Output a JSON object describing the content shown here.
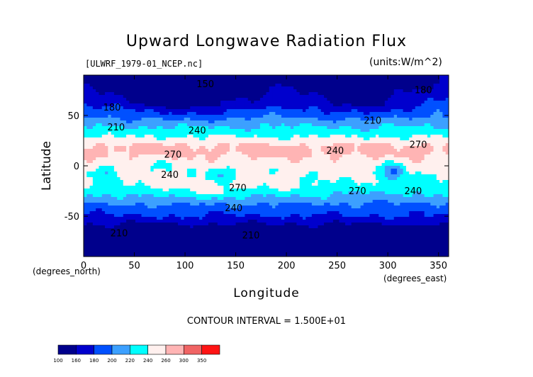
{
  "chart_data": {
    "type": "heatmap",
    "title": "Upward Longwave Radiation Flux",
    "file_label": "[ULWRF_1979-01_NCEP.nc]",
    "units_label": "(units:W/m^2)",
    "xlabel": "Longitude",
    "ylabel": "Latitude",
    "x_units": "(degrees_north)",
    "x_units2": "(degrees_east)",
    "xlim": [
      0,
      360
    ],
    "ylim": [
      -90,
      90
    ],
    "xticks": [
      0,
      50,
      100,
      150,
      200,
      250,
      300,
      350
    ],
    "yticks": [
      -50,
      0,
      50
    ],
    "contour_interval": "CONTOUR INTERVAL = 1.500E+01",
    "contour_labels": [
      {
        "text": "150",
        "lon": 120,
        "lat": 78
      },
      {
        "text": "180",
        "lon": 28,
        "lat": 55
      },
      {
        "text": "180",
        "lon": 335,
        "lat": 72
      },
      {
        "text": "210",
        "lon": 32,
        "lat": 35
      },
      {
        "text": "210",
        "lon": 285,
        "lat": 42
      },
      {
        "text": "240",
        "lon": 112,
        "lat": 32
      },
      {
        "text": "240",
        "lon": 248,
        "lat": 12
      },
      {
        "text": "240",
        "lon": 85,
        "lat": -12
      },
      {
        "text": "240",
        "lon": 148,
        "lat": -45
      },
      {
        "text": "240",
        "lon": 325,
        "lat": -28
      },
      {
        "text": "270",
        "lon": 88,
        "lat": 8
      },
      {
        "text": "270",
        "lon": 330,
        "lat": 18
      },
      {
        "text": "270",
        "lon": 152,
        "lat": -25
      },
      {
        "text": "270",
        "lon": 270,
        "lat": -28
      },
      {
        "text": "210",
        "lon": 35,
        "lat": -70
      },
      {
        "text": "210",
        "lon": 165,
        "lat": -72
      }
    ],
    "colorbar": {
      "levels": [
        100,
        160,
        180,
        200,
        220,
        240,
        260,
        300,
        350
      ],
      "colors": [
        "#00008c",
        "#0000cd",
        "#0050ff",
        "#3ca0ff",
        "#00ffff",
        "#fff0ee",
        "#ffb4b4",
        "#f06464",
        "#ff1414"
      ]
    }
  }
}
